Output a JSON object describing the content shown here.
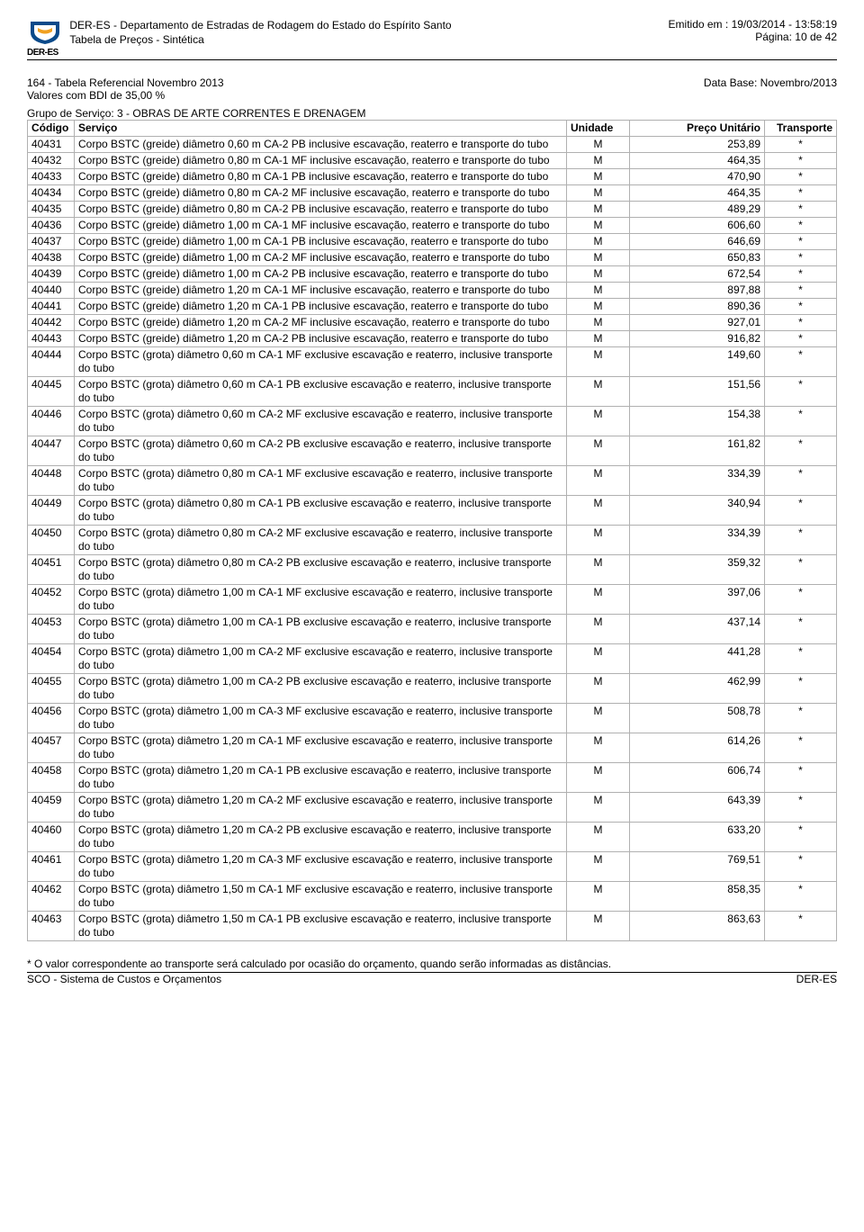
{
  "header": {
    "org_line": "DER-ES - Departamento de Estradas de Rodagem do Estado do Espírito Santo",
    "doc_line": "Tabela de Preços - Sintética",
    "emitted_label": "Emitido em : ",
    "emitted_value": "19/03/2014 - 13:58:19",
    "page_label": "Página: ",
    "page_value": "10 de 42",
    "logo_text": "DER-ES",
    "logo_color": "#0a4a8a",
    "logo_accent": "#f0a020"
  },
  "meta": {
    "ref_line": "164 - Tabela Referencial Novembro 2013",
    "bdi_line": "Valores com BDI de 35,00 %",
    "database_label": "Data Base: ",
    "database_value": "Novembro/2013"
  },
  "group_line": "Grupo de Serviço: 3 - OBRAS DE ARTE CORRENTES E DRENAGEM",
  "table": {
    "headers": {
      "codigo": "Código",
      "servico": "Serviço",
      "unidade": "Unidade",
      "preco": "Preço Unitário",
      "transporte": "Transporte"
    },
    "rows": [
      {
        "codigo": "40431",
        "servico": "Corpo BSTC (greide) diâmetro 0,60 m CA-2 PB inclusive escavação, reaterro e transporte do tubo",
        "unidade": "M",
        "preco": "253,89",
        "transporte": "*"
      },
      {
        "codigo": "40432",
        "servico": "Corpo BSTC (greide) diâmetro 0,80 m CA-1 MF inclusive escavação, reaterro e transporte do tubo",
        "unidade": "M",
        "preco": "464,35",
        "transporte": "*"
      },
      {
        "codigo": "40433",
        "servico": "Corpo BSTC (greide) diâmetro 0,80 m CA-1 PB inclusive escavação, reaterro e transporte do tubo",
        "unidade": "M",
        "preco": "470,90",
        "transporte": "*"
      },
      {
        "codigo": "40434",
        "servico": "Corpo BSTC (greide) diâmetro 0,80 m CA-2 MF inclusive escavação, reaterro e transporte do tubo",
        "unidade": "M",
        "preco": "464,35",
        "transporte": "*"
      },
      {
        "codigo": "40435",
        "servico": "Corpo BSTC (greide) diâmetro 0,80 m CA-2 PB inclusive escavação, reaterro e transporte do tubo",
        "unidade": "M",
        "preco": "489,29",
        "transporte": "*"
      },
      {
        "codigo": "40436",
        "servico": "Corpo BSTC (greide) diâmetro 1,00 m CA-1 MF inclusive escavação, reaterro e transporte do tubo",
        "unidade": "M",
        "preco": "606,60",
        "transporte": "*"
      },
      {
        "codigo": "40437",
        "servico": "Corpo BSTC (greide) diâmetro 1,00 m CA-1 PB inclusive escavação, reaterro e transporte do tubo",
        "unidade": "M",
        "preco": "646,69",
        "transporte": "*"
      },
      {
        "codigo": "40438",
        "servico": "Corpo BSTC (greide) diâmetro 1,00 m CA-2 MF inclusive escavação, reaterro e transporte do tubo",
        "unidade": "M",
        "preco": "650,83",
        "transporte": "*"
      },
      {
        "codigo": "40439",
        "servico": "Corpo BSTC (greide) diâmetro 1,00 m CA-2 PB inclusive escavação, reaterro e transporte do tubo",
        "unidade": "M",
        "preco": "672,54",
        "transporte": "*"
      },
      {
        "codigo": "40440",
        "servico": "Corpo BSTC (greide) diâmetro 1,20 m CA-1 MF inclusive escavação, reaterro e transporte do tubo",
        "unidade": "M",
        "preco": "897,88",
        "transporte": "*"
      },
      {
        "codigo": "40441",
        "servico": "Corpo BSTC (greide) diâmetro 1,20 m CA-1 PB inclusive escavação, reaterro e transporte do tubo",
        "unidade": "M",
        "preco": "890,36",
        "transporte": "*"
      },
      {
        "codigo": "40442",
        "servico": "Corpo BSTC (greide) diâmetro 1,20 m CA-2 MF inclusive escavação, reaterro e transporte do tubo",
        "unidade": "M",
        "preco": "927,01",
        "transporte": "*"
      },
      {
        "codigo": "40443",
        "servico": "Corpo BSTC (greide) diâmetro 1,20 m CA-2 PB inclusive escavação, reaterro e transporte do tubo",
        "unidade": "M",
        "preco": "916,82",
        "transporte": "*"
      },
      {
        "codigo": "40444",
        "servico": "Corpo BSTC (grota) diâmetro 0,60 m CA-1 MF exclusive escavação e reaterro, inclusive transporte do tubo",
        "unidade": "M",
        "preco": "149,60",
        "transporte": "*"
      },
      {
        "codigo": "40445",
        "servico": "Corpo BSTC (grota) diâmetro 0,60 m CA-1 PB exclusive escavação e reaterro, inclusive transporte do tubo",
        "unidade": "M",
        "preco": "151,56",
        "transporte": "*"
      },
      {
        "codigo": "40446",
        "servico": "Corpo BSTC (grota) diâmetro 0,60 m CA-2 MF exclusive escavação e reaterro, inclusive transporte do tubo",
        "unidade": "M",
        "preco": "154,38",
        "transporte": "*"
      },
      {
        "codigo": "40447",
        "servico": "Corpo BSTC (grota) diâmetro 0,60 m CA-2 PB exclusive escavação e reaterro, inclusive transporte do tubo",
        "unidade": "M",
        "preco": "161,82",
        "transporte": "*"
      },
      {
        "codigo": "40448",
        "servico": "Corpo BSTC (grota) diâmetro 0,80 m CA-1 MF exclusive escavação e reaterro, inclusive transporte do tubo",
        "unidade": "M",
        "preco": "334,39",
        "transporte": "*"
      },
      {
        "codigo": "40449",
        "servico": "Corpo BSTC (grota) diâmetro 0,80 m CA-1 PB exclusive escavação e reaterro, inclusive transporte do tubo",
        "unidade": "M",
        "preco": "340,94",
        "transporte": "*"
      },
      {
        "codigo": "40450",
        "servico": "Corpo BSTC (grota) diâmetro 0,80 m CA-2 MF exclusive escavação e reaterro, inclusive transporte do tubo",
        "unidade": "M",
        "preco": "334,39",
        "transporte": "*"
      },
      {
        "codigo": "40451",
        "servico": "Corpo BSTC (grota) diâmetro 0,80 m CA-2 PB exclusive escavação e reaterro, inclusive transporte do tubo",
        "unidade": "M",
        "preco": "359,32",
        "transporte": "*"
      },
      {
        "codigo": "40452",
        "servico": "Corpo BSTC (grota) diâmetro 1,00 m CA-1 MF exclusive escavação e reaterro, inclusive transporte do tubo",
        "unidade": "M",
        "preco": "397,06",
        "transporte": "*"
      },
      {
        "codigo": "40453",
        "servico": "Corpo BSTC (grota) diâmetro 1,00 m CA-1 PB exclusive escavação e reaterro, inclusive transporte do tubo",
        "unidade": "M",
        "preco": "437,14",
        "transporte": "*"
      },
      {
        "codigo": "40454",
        "servico": "Corpo BSTC (grota) diâmetro 1,00 m CA-2 MF exclusive escavação e reaterro, inclusive transporte do tubo",
        "unidade": "M",
        "preco": "441,28",
        "transporte": "*"
      },
      {
        "codigo": "40455",
        "servico": "Corpo BSTC (grota) diâmetro 1,00 m CA-2 PB exclusive escavação e reaterro, inclusive transporte do tubo",
        "unidade": "M",
        "preco": "462,99",
        "transporte": "*"
      },
      {
        "codigo": "40456",
        "servico": "Corpo BSTC (grota) diâmetro 1,00 m CA-3 MF exclusive escavação e reaterro, inclusive transporte do tubo",
        "unidade": "M",
        "preco": "508,78",
        "transporte": "*"
      },
      {
        "codigo": "40457",
        "servico": "Corpo BSTC (grota) diâmetro 1,20 m CA-1 MF exclusive escavação e reaterro, inclusive transporte do tubo",
        "unidade": "M",
        "preco": "614,26",
        "transporte": "*"
      },
      {
        "codigo": "40458",
        "servico": "Corpo BSTC (grota) diâmetro 1,20 m CA-1 PB exclusive escavação e reaterro, inclusive transporte do tubo",
        "unidade": "M",
        "preco": "606,74",
        "transporte": "*"
      },
      {
        "codigo": "40459",
        "servico": "Corpo BSTC (grota) diâmetro 1,20 m CA-2 MF exclusive escavação e reaterro, inclusive transporte do tubo",
        "unidade": "M",
        "preco": "643,39",
        "transporte": "*"
      },
      {
        "codigo": "40460",
        "servico": "Corpo BSTC (grota) diâmetro 1,20 m CA-2 PB exclusive escavação e reaterro, inclusive transporte do tubo",
        "unidade": "M",
        "preco": "633,20",
        "transporte": "*"
      },
      {
        "codigo": "40461",
        "servico": "Corpo BSTC (grota) diâmetro 1,20 m CA-3 MF exclusive escavação e reaterro, inclusive transporte do tubo",
        "unidade": "M",
        "preco": "769,51",
        "transporte": "*"
      },
      {
        "codigo": "40462",
        "servico": "Corpo BSTC (grota) diâmetro 1,50 m CA-1 MF exclusive escavação e reaterro, inclusive transporte do tubo",
        "unidade": "M",
        "preco": "858,35",
        "transporte": "*"
      },
      {
        "codigo": "40463",
        "servico": "Corpo BSTC (grota) diâmetro 1,50 m CA-1 PB exclusive escavação e reaterro, inclusive transporte do tubo",
        "unidade": "M",
        "preco": "863,63",
        "transporte": "*"
      }
    ]
  },
  "footnote": "* O valor correspondente ao transporte será calculado por ocasião do orçamento, quando serão informadas as distâncias.",
  "footer": {
    "left": "SCO - Sistema de Custos e Orçamentos",
    "right": "DER-ES"
  },
  "style": {
    "border_color": "#b0b0b0",
    "text_color": "#000000",
    "background": "#ffffff",
    "font_family": "Arial",
    "base_font_size_pt": 9
  }
}
